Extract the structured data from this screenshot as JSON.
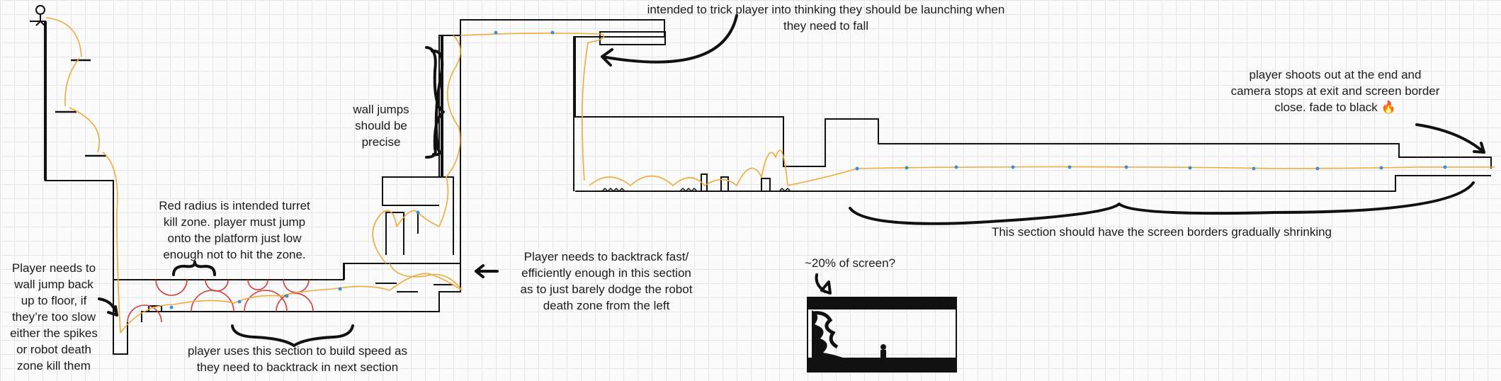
{
  "annotations": {
    "trick": "intended to trick player into thinking they should be launching when\nthey need to fall",
    "wall_jumps": "wall jumps\nshould be\nprecise",
    "exit": "player shoots out at the end and\ncamera stops at exit and screen border\nclose. fade to black 🔥",
    "shrinking": "This section should have the screen borders gradually shrinking",
    "turret": "Red radius is intended turret\nkill zone. player must jump\nonto the platform just low\nenough not to hit the zone.",
    "backtrack": "Player needs to backtrack fast/\nefficiently enough in this section\nas to just barely dodge the robot\ndeath zone from the left",
    "wall_jump_back": "Player needs to\nwall jump back\nup to floor, if\nthey’re too slow\neither the spikes\nor robot death\nzone kill them",
    "build_speed": "player uses this section to build speed as\nthey need to backtrack in next section",
    "screen_pct": "~20% of screen?"
  },
  "colors": {
    "wall": "#111111",
    "player_path": "#f0a93b",
    "turret_zone": "#d23a3a",
    "checkpoint": "#3a8fd8",
    "grid": "#e6e6e6"
  }
}
